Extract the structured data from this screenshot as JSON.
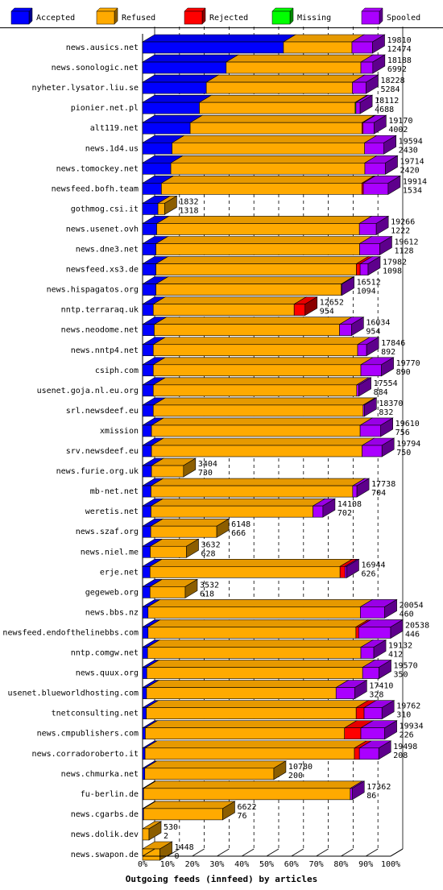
{
  "chart_data": {
    "type": "bar",
    "orientation": "horizontal",
    "stacked": true,
    "style": "3d",
    "title": "",
    "xlabel": "Outgoing feeds (innfeed) by articles",
    "ylabel": "",
    "xlim": [
      0,
      100
    ],
    "x_unit": "percent",
    "grid": true,
    "legend_placement": "top",
    "x_ticks": [
      "0%",
      "10%",
      "20%",
      "30%",
      "40%",
      "50%",
      "60%",
      "70%",
      "80%",
      "90%",
      "100%"
    ],
    "series_keys": [
      "accepted",
      "refused",
      "rejected",
      "missing",
      "spooled"
    ],
    "series": [
      {
        "key": "accepted",
        "name": "Accepted",
        "color": "#0000ff"
      },
      {
        "key": "refused",
        "name": "Refused",
        "color": "#ffaa00"
      },
      {
        "key": "rejected",
        "name": "Rejected",
        "color": "#ff0000"
      },
      {
        "key": "missing",
        "name": "Missing",
        "color": "#00ff00"
      },
      {
        "key": "spooled",
        "name": "Spooled",
        "color": "#aa00ff"
      }
    ],
    "max_total": 20538,
    "rows": [
      {
        "name": "news.ausics.net",
        "total": 19810,
        "accepted_count": 12474,
        "pct": [
          56.8,
          27.6,
          0,
          0,
          8.3
        ]
      },
      {
        "name": "news.sonologic.net",
        "total": 18188,
        "accepted_count": 6992,
        "pct": [
          33.7,
          54.3,
          0,
          0,
          4.8
        ]
      },
      {
        "name": "nyheter.lysator.liu.se",
        "total": 18228,
        "accepted_count": 5284,
        "pct": [
          25.7,
          58.9,
          0,
          0,
          5.5
        ]
      },
      {
        "name": "pionier.net.pl",
        "total": 18112,
        "accepted_count": 4688,
        "pct": [
          22.9,
          62.8,
          0,
          0.3,
          1.7
        ]
      },
      {
        "name": "alt119.net",
        "total": 19170,
        "accepted_count": 4002,
        "pct": [
          19.2,
          69.3,
          0.4,
          0,
          4.4
        ]
      },
      {
        "name": "news.1d4.us",
        "total": 19594,
        "accepted_count": 2430,
        "pct": [
          11.9,
          77.6,
          0,
          0,
          7.8
        ]
      },
      {
        "name": "news.tomockey.net",
        "total": 19714,
        "accepted_count": 2420,
        "pct": [
          11.4,
          78.2,
          0,
          0,
          8.3
        ]
      },
      {
        "name": "newsfeed.bofh.team",
        "total": 19914,
        "accepted_count": 1534,
        "pct": [
          7.6,
          80.8,
          0.6,
          0,
          10.0
        ]
      },
      {
        "name": "gothmog.csi.it",
        "total": 1832,
        "accepted_count": 1318,
        "pct": [
          6.2,
          2.7,
          0,
          0,
          0
        ]
      },
      {
        "name": "news.usenet.ovh",
        "total": 19266,
        "accepted_count": 1222,
        "pct": [
          5.7,
          81.7,
          0,
          0,
          6.8
        ]
      },
      {
        "name": "news.dne3.net",
        "total": 19612,
        "accepted_count": 1128,
        "pct": [
          5.4,
          82.1,
          0,
          0,
          8.1
        ]
      },
      {
        "name": "newsfeed.xs3.de",
        "total": 17982,
        "accepted_count": 1098,
        "pct": [
          5.4,
          80.8,
          1.5,
          0,
          3.2
        ]
      },
      {
        "name": "news.hispagatos.org",
        "total": 16512,
        "accepted_count": 1094,
        "pct": [
          5.4,
          74.7,
          0,
          0,
          0.3
        ]
      },
      {
        "name": "nntp.terraraq.uk",
        "total": 12652,
        "accepted_count": 954,
        "pct": [
          4.3,
          56.8,
          4.4,
          0,
          0
        ]
      },
      {
        "name": "news.neodome.net",
        "total": 16034,
        "accepted_count": 954,
        "pct": [
          4.7,
          74.7,
          0,
          0,
          4.8
        ]
      },
      {
        "name": "news.nntp4.net",
        "total": 17846,
        "accepted_count": 892,
        "pct": [
          4.3,
          82.4,
          0,
          0,
          3.6
        ]
      },
      {
        "name": "csiph.com",
        "total": 19770,
        "accepted_count": 890,
        "pct": [
          4.3,
          83.7,
          0,
          0,
          8.3
        ]
      },
      {
        "name": "usenet.goja.nl.eu.org",
        "total": 17554,
        "accepted_count": 884,
        "pct": [
          4.3,
          82.0,
          0,
          0,
          0.9
        ]
      },
      {
        "name": "srl.newsdeef.eu",
        "total": 18370,
        "accepted_count": 832,
        "pct": [
          4.3,
          84.6,
          0,
          0,
          0.5
        ]
      },
      {
        "name": "xmission",
        "total": 19610,
        "accepted_count": 756,
        "pct": [
          3.6,
          84.1,
          0,
          0,
          8.3
        ]
      },
      {
        "name": "srv.newsdeef.eu",
        "total": 19794,
        "accepted_count": 750,
        "pct": [
          3.6,
          84.9,
          0,
          0,
          8.0
        ]
      },
      {
        "name": "news.furie.org.uk",
        "total": 3404,
        "accepted_count": 730,
        "pct": [
          3.6,
          12.9,
          0,
          0,
          0
        ]
      },
      {
        "name": "mb-net.net",
        "total": 17738,
        "accepted_count": 704,
        "pct": [
          3.4,
          81.3,
          0,
          0,
          1.7
        ]
      },
      {
        "name": "weretis.net",
        "total": 14108,
        "accepted_count": 702,
        "pct": [
          3.4,
          65.3,
          0,
          0,
          4.0
        ]
      },
      {
        "name": "news.szaf.org",
        "total": 6148,
        "accepted_count": 666,
        "pct": [
          3.3,
          26.6,
          0,
          0,
          0
        ]
      },
      {
        "name": "news.niel.me",
        "total": 3632,
        "accepted_count": 628,
        "pct": [
          3.1,
          14.6,
          0,
          0,
          0
        ]
      },
      {
        "name": "erje.net",
        "total": 16944,
        "accepted_count": 626,
        "pct": [
          3.0,
          76.6,
          2.0,
          0,
          0.7
        ]
      },
      {
        "name": "gegeweb.org",
        "total": 3532,
        "accepted_count": 618,
        "pct": [
          3.0,
          14.2,
          0,
          0,
          0
        ]
      },
      {
        "name": "news.bbs.nz",
        "total": 20054,
        "accepted_count": 460,
        "pct": [
          2.2,
          85.6,
          0,
          0,
          9.8
        ]
      },
      {
        "name": "newsfeed.endofthelinebbs.com",
        "total": 20538,
        "accepted_count": 446,
        "pct": [
          2.2,
          83.8,
          1.1,
          0,
          12.9
        ]
      },
      {
        "name": "nntp.comgw.net",
        "total": 19132,
        "accepted_count": 412,
        "pct": [
          2.0,
          86.0,
          0,
          0,
          5.2
        ]
      },
      {
        "name": "news.quux.org",
        "total": 19570,
        "accepted_count": 350,
        "pct": [
          1.7,
          87.0,
          0,
          0,
          6.6
        ]
      },
      {
        "name": "usenet.blueworldhosting.com",
        "total": 17410,
        "accepted_count": 328,
        "pct": [
          1.6,
          76.4,
          0,
          0,
          7.5
        ]
      },
      {
        "name": "tnetconsulting.net",
        "total": 19762,
        "accepted_count": 310,
        "pct": [
          1.5,
          84.6,
          3.2,
          0,
          7.2
        ]
      },
      {
        "name": "news.cmpublishers.com",
        "total": 19934,
        "accepted_count": 226,
        "pct": [
          1.1,
          80.3,
          6.6,
          0,
          9.6
        ]
      },
      {
        "name": "news.corradoroberto.it",
        "total": 19498,
        "accepted_count": 208,
        "pct": [
          1.0,
          84.4,
          2.0,
          0,
          7.8
        ]
      },
      {
        "name": "news.chmurka.net",
        "total": 10780,
        "accepted_count": 200,
        "pct": [
          0.9,
          52.0,
          0,
          0,
          0
        ]
      },
      {
        "name": "fu-berlin.de",
        "total": 17362,
        "accepted_count": 86,
        "pct": [
          0.4,
          83.3,
          0,
          0,
          0.8
        ]
      },
      {
        "name": "news.cgarbs.de",
        "total": 6622,
        "accepted_count": 76,
        "pct": [
          0.4,
          31.9,
          0,
          0,
          0
        ]
      },
      {
        "name": "news.dolik.dev",
        "total": 530,
        "accepted_count": 2,
        "pct": [
          0,
          2.6,
          0,
          0,
          0
        ]
      },
      {
        "name": "news.swapon.de",
        "total": 1448,
        "accepted_count": 0,
        "pct": [
          0,
          7.0,
          0,
          0,
          0
        ]
      }
    ]
  }
}
